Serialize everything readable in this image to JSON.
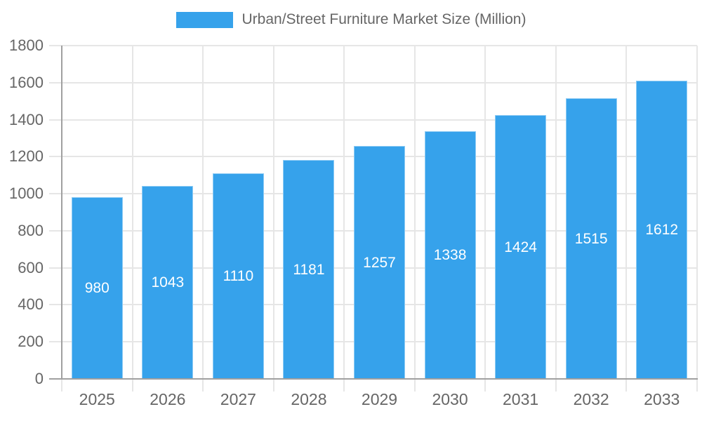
{
  "chart_data": {
    "type": "bar",
    "title": "Urban/Street Furniture Market Size (Million)",
    "categories": [
      "2025",
      "2026",
      "2027",
      "2028",
      "2029",
      "2030",
      "2031",
      "2032",
      "2033"
    ],
    "values": [
      980,
      1043,
      1110,
      1181,
      1257,
      1338,
      1424,
      1515,
      1612
    ],
    "series_name": "Urban/Street Furniture Market Size (Million)",
    "xlabel": "",
    "ylabel": "",
    "ylim": [
      0,
      1800
    ],
    "yticks": [
      0,
      200,
      400,
      600,
      800,
      1000,
      1200,
      1400,
      1600,
      1800
    ],
    "grid": true,
    "legend_position": "top",
    "bar_color": "#36a2eb",
    "value_label_color": "#ffffff",
    "axis_text_color": "#666666",
    "grid_color": "#e6e6e6",
    "axis_line_color": "#a0a0a0",
    "background_color": "#ffffff"
  }
}
